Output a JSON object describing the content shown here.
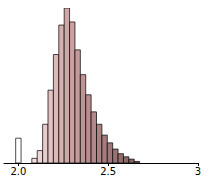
{
  "chart_data": {
    "type": "histogram",
    "bins": [
      1.985,
      2.015,
      2.045,
      2.075,
      2.105,
      2.135,
      2.165,
      2.195,
      2.225,
      2.255,
      2.285,
      2.315,
      2.345,
      2.375,
      2.405,
      2.435,
      2.465,
      2.495,
      2.525,
      2.555,
      2.585,
      2.615,
      2.645,
      2.675
    ],
    "counts": [
      16,
      0,
      0,
      3,
      8,
      25,
      47,
      70,
      89,
      100,
      91,
      73,
      57,
      44,
      33,
      25,
      18,
      13,
      9,
      6,
      4,
      2.5,
      1
    ],
    "colors": [
      "#ffffff",
      "#ffffff",
      "#ffffff",
      "#f3e2e2",
      "#eed6d6",
      "#e8cccc",
      "#e2c2c2",
      "#dcb8b8",
      "#d6afaf",
      "#d0a6a6",
      "#caa0a0",
      "#c49a9a",
      "#be9494",
      "#b88e8e",
      "#b28888",
      "#ab8282",
      "#a57c7c",
      "#9f7777",
      "#997272",
      "#936d6d",
      "#8d6868",
      "#876363",
      "#815e5e"
    ],
    "xlim": [
      1.92,
      3.0
    ],
    "xticks": [
      {
        "value": 2,
        "label": "2.0"
      },
      2.5,
      3
    ],
    "ylim": [
      0,
      100
    ],
    "grid": false,
    "tick_labels": "x"
  }
}
